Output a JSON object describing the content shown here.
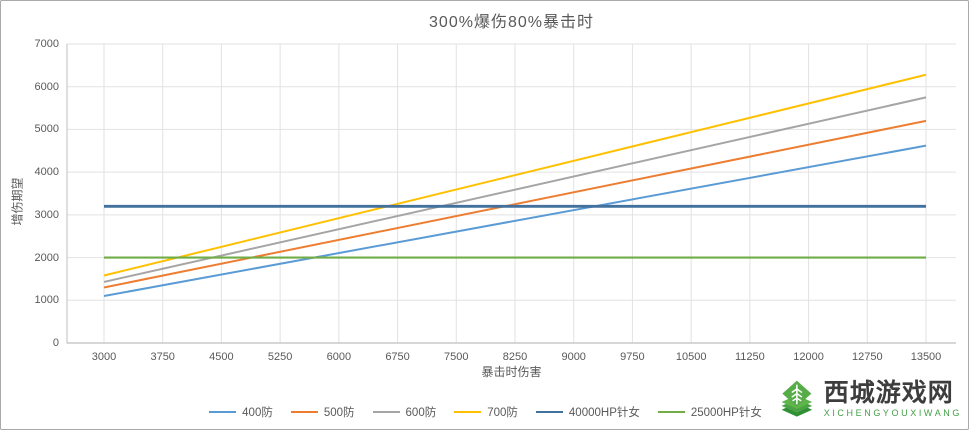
{
  "chart_data": {
    "type": "line",
    "title": "300%爆伤80%暴击时",
    "xlabel": "暴击时伤害",
    "ylabel": "增伤期望",
    "xlim": [
      3000,
      13500
    ],
    "ylim": [
      0,
      7000
    ],
    "x_ticks": [
      3000,
      3750,
      4500,
      5250,
      6000,
      6750,
      7500,
      8250,
      9000,
      9750,
      10500,
      11250,
      12000,
      12750,
      13500
    ],
    "y_ticks": [
      0,
      1000,
      2000,
      3000,
      4000,
      5000,
      6000,
      7000
    ],
    "grid": true,
    "legend_position": "bottom",
    "gridline_color": "#e2e2e2",
    "axis_color": "#bfbfbf",
    "tick_text_color": "#595959",
    "series": [
      {
        "name": "400防",
        "color": "#5B9BD5",
        "stroke_width": 2,
        "x": [
          3000,
          13500
        ],
        "values": [
          1100,
          4620
        ]
      },
      {
        "name": "500防",
        "color": "#ED7D31",
        "stroke_width": 2,
        "x": [
          3000,
          13500
        ],
        "values": [
          1300,
          5200
        ]
      },
      {
        "name": "600防",
        "color": "#A5A5A5",
        "stroke_width": 2,
        "x": [
          3000,
          13500
        ],
        "values": [
          1430,
          5750
        ]
      },
      {
        "name": "700防",
        "color": "#FFC000",
        "stroke_width": 2,
        "x": [
          3000,
          13500
        ],
        "values": [
          1580,
          6280
        ]
      },
      {
        "name": "40000HP针女",
        "color": "#41719C",
        "stroke_width": 2.8,
        "x": [
          3000,
          13500
        ],
        "values": [
          3200,
          3200
        ]
      },
      {
        "name": "25000HP针女",
        "color": "#70AD47",
        "stroke_width": 2.2,
        "x": [
          3000,
          13500
        ],
        "values": [
          2000,
          2000
        ]
      }
    ]
  },
  "watermark": {
    "site_name": "西城游戏网",
    "site_name_latin": "XICHENGYOUXIWANG",
    "logo": "wheat-layers-logo",
    "green": "#43a047"
  }
}
